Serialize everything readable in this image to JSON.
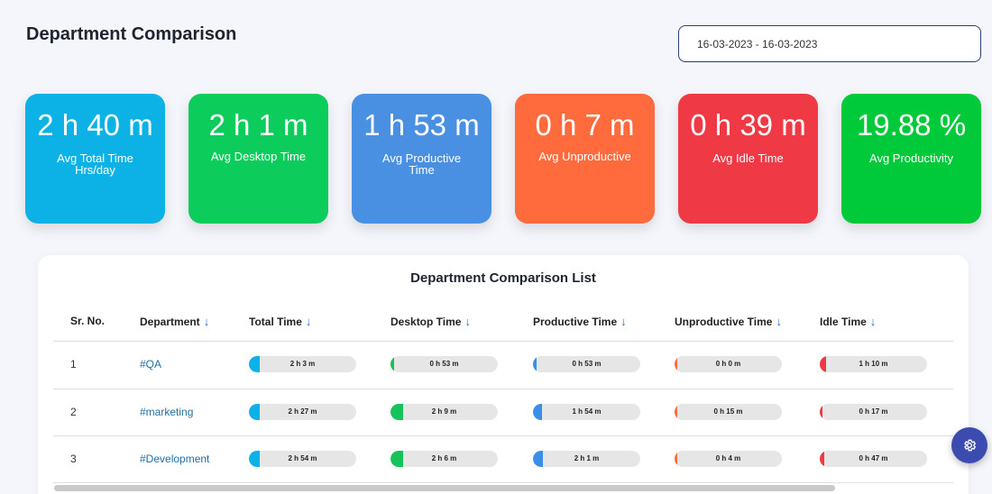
{
  "page": {
    "title": "Department Comparison"
  },
  "date_range": {
    "value": "16-03-2023 - 16-03-2023"
  },
  "cards": [
    {
      "value": "2 h 40 m",
      "label": "Avg Total Time Hrs/day",
      "color": "#0cb2e6"
    },
    {
      "value": "2 h 1 m",
      "label": "Avg Desktop Time",
      "color": "#0ccd5b"
    },
    {
      "value": "1 h 53 m",
      "label": "Avg Productive Time",
      "color": "#4a90e2"
    },
    {
      "value": "0 h 7 m",
      "label": "Avg Unproductive",
      "color": "#ff6b3d"
    },
    {
      "value": "0 h 39 m",
      "label": "Avg Idle Time",
      "color": "#ef3a45"
    },
    {
      "value": "19.88 %",
      "label": "Avg Productivity",
      "color": "#00c93a"
    }
  ],
  "table": {
    "title": "Department Comparison List",
    "headers": [
      "Sr. No.",
      "Department",
      "Total Time",
      "Desktop Time",
      "Productive Time",
      "Unproductive Time",
      "Idle Time"
    ],
    "sort_icon": "arrow-down-icon",
    "rows": [
      {
        "sr": "1",
        "department": "#QA",
        "total": "2 h 3 m",
        "desktop": "0 h 53 m",
        "productive": "0 h 53 m",
        "unproductive": "0 h 0 m",
        "idle": "1 h 10 m",
        "fractions": {
          "total": 0.1,
          "desktop": 0.03,
          "productive": 0.03,
          "unproductive": 0.0,
          "idle": 0.06
        }
      },
      {
        "sr": "2",
        "department": "#marketing",
        "total": "2 h 27 m",
        "desktop": "2 h 9 m",
        "productive": "1 h 54 m",
        "unproductive": "0 h 15 m",
        "idle": "0 h 17 m",
        "fractions": {
          "total": 0.1,
          "desktop": 0.12,
          "productive": 0.08,
          "unproductive": 0.01,
          "idle": 0.01
        }
      },
      {
        "sr": "3",
        "department": "#Development",
        "total": "2 h 54 m",
        "desktop": "2 h 6 m",
        "productive": "2 h 1 m",
        "unproductive": "0 h 4 m",
        "idle": "0 h 47 m",
        "fractions": {
          "total": 0.1,
          "desktop": 0.12,
          "productive": 0.09,
          "unproductive": 0.01,
          "idle": 0.04
        }
      }
    ],
    "colors": {
      "total": "#0cb2e6",
      "desktop": "#16c25a",
      "productive": "#3a8fe8",
      "unproductive": "#ff6b3d",
      "idle": "#ef3a45"
    }
  },
  "settings": {
    "icon": "gear-icon"
  }
}
